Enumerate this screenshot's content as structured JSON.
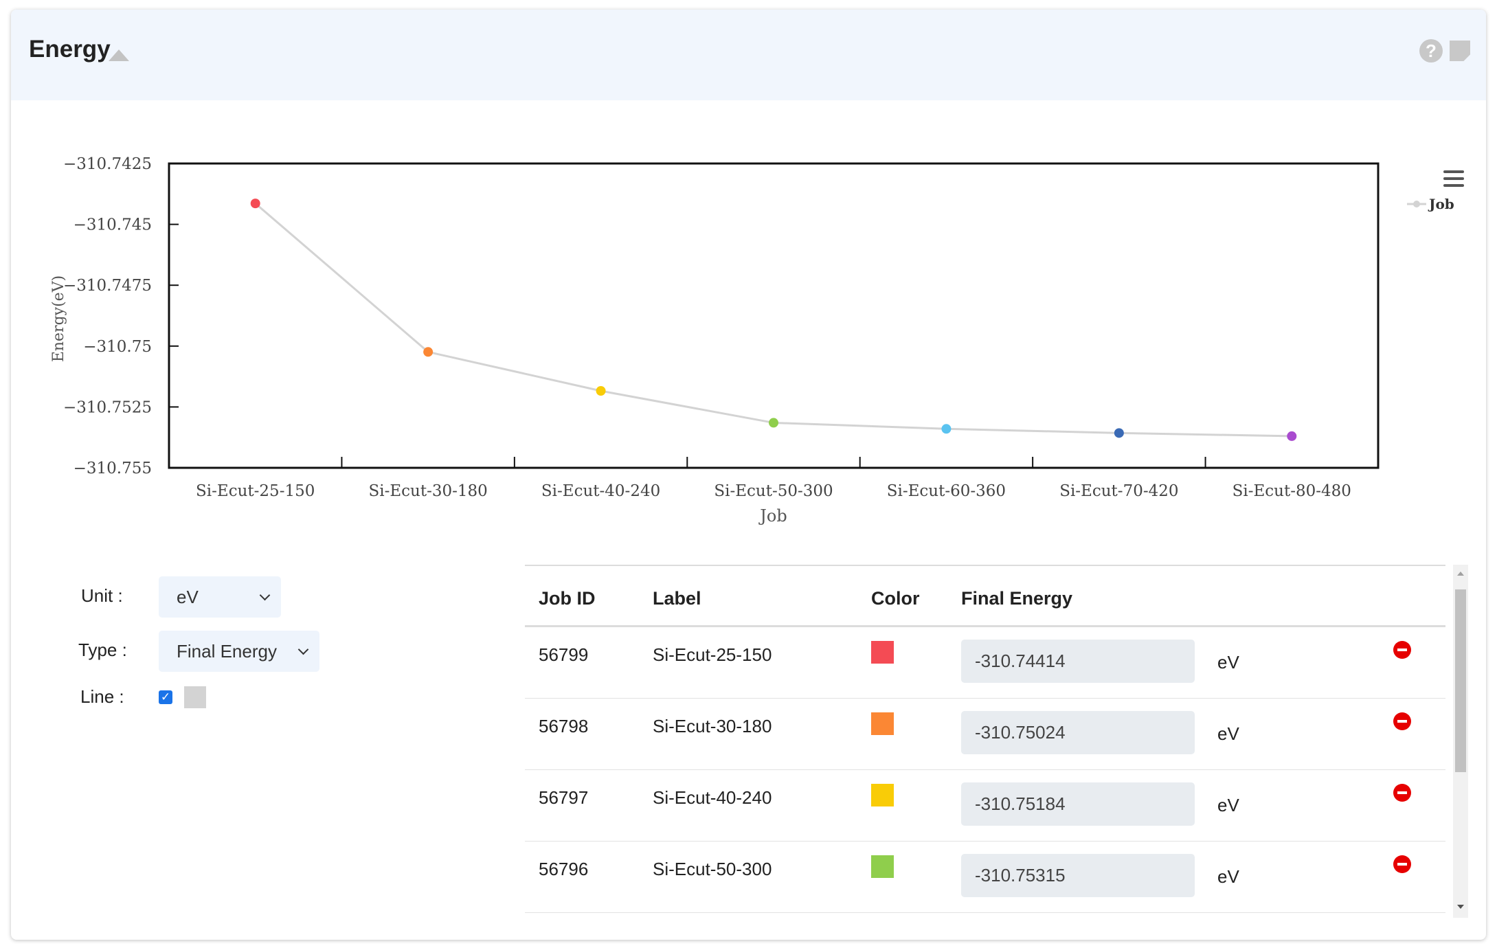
{
  "panel": {
    "title": "Energy"
  },
  "header_icons": [
    "help-icon",
    "note-icon",
    "collapse-icon"
  ],
  "chart_data": {
    "type": "line",
    "xlabel": "Job",
    "ylabel": "Energy(eV)",
    "categories": [
      "Si-Ecut-25-150",
      "Si-Ecut-30-180",
      "Si-Ecut-40-240",
      "Si-Ecut-50-300",
      "Si-Ecut-60-360",
      "Si-Ecut-70-420",
      "Si-Ecut-80-480"
    ],
    "series": [
      {
        "name": "Job",
        "values": [
          -310.74414,
          -310.75024,
          -310.75184,
          -310.75315,
          -310.7534,
          -310.75357,
          -310.7537
        ]
      }
    ],
    "point_colors": [
      "#f44b54",
      "#fb8734",
      "#f9cc07",
      "#8fce4c",
      "#5ac3f0",
      "#3a6ab5",
      "#a94bcf"
    ],
    "line_color": "#d3d3d3",
    "yticks": [
      "-310.7425",
      "-310.745",
      "-310.7475",
      "-310.75",
      "-310.7525",
      "-310.755"
    ],
    "ylim": [
      -310.755,
      -310.7425
    ],
    "legend": {
      "label": "Job",
      "position": "top-right"
    },
    "menu_icon": "hamburger-icon"
  },
  "controls": {
    "unit_label": "Unit :",
    "unit_value": "eV",
    "type_label": "Type :",
    "type_value": "Final Energy",
    "line_label": "Line :",
    "line_checked": true,
    "line_color": "#d3d3d3"
  },
  "table": {
    "headers": {
      "job_id": "Job ID",
      "label": "Label",
      "color": "Color",
      "final_energy": "Final Energy"
    },
    "rows": [
      {
        "job_id": "56799",
        "label": "Si-Ecut-25-150",
        "color": "#f44b54",
        "energy": "-310.74414",
        "unit": "eV"
      },
      {
        "job_id": "56798",
        "label": "Si-Ecut-30-180",
        "color": "#fb8734",
        "energy": "-310.75024",
        "unit": "eV"
      },
      {
        "job_id": "56797",
        "label": "Si-Ecut-40-240",
        "color": "#f9cc07",
        "energy": "-310.75184",
        "unit": "eV"
      },
      {
        "job_id": "56796",
        "label": "Si-Ecut-50-300",
        "color": "#8fce4c",
        "energy": "-310.75315",
        "unit": "eV"
      }
    ]
  }
}
